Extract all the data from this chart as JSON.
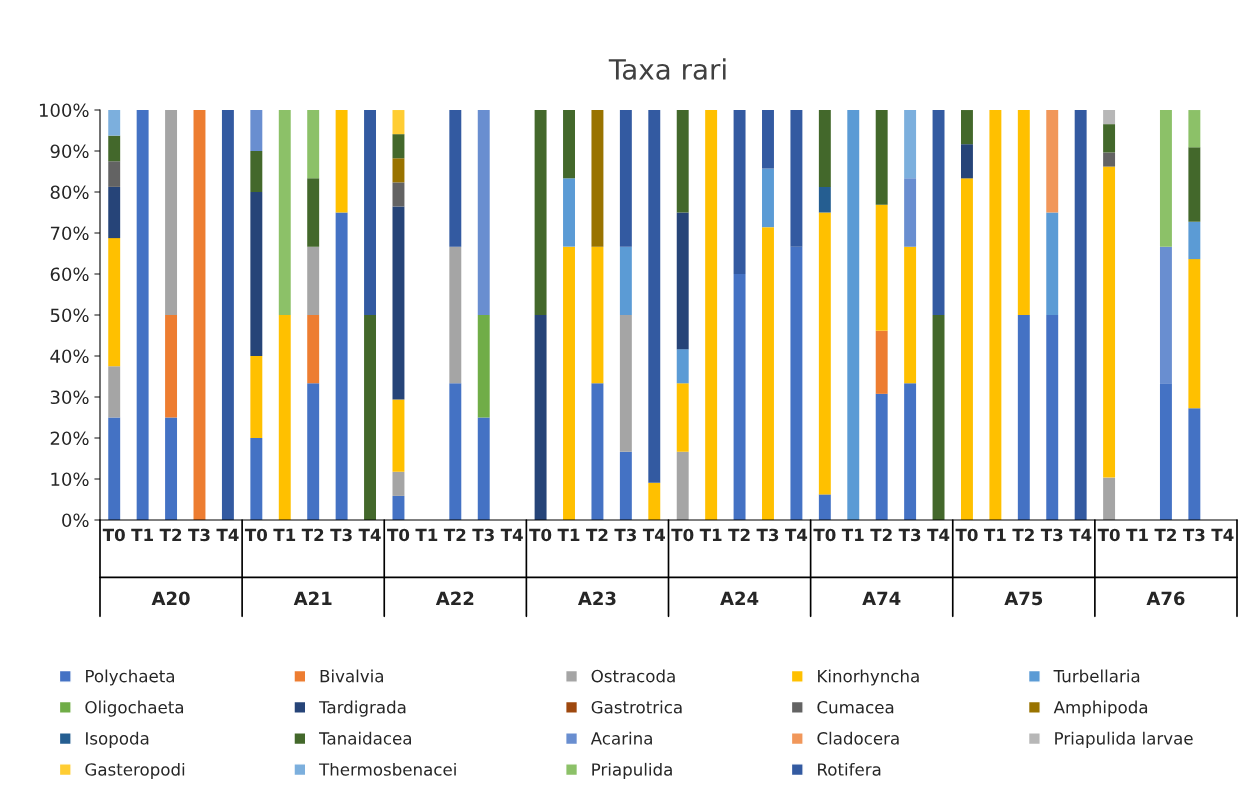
{
  "chart_data": {
    "type": "bar",
    "title": "Taxa rari",
    "stacked": true,
    "legend": "bottom",
    "grid": false,
    "categories": [
      "T0",
      "T1",
      "T2",
      "T3",
      "T4",
      "T0",
      "T1",
      "T2",
      "T3",
      "T4",
      "T0",
      "T1",
      "T2",
      "T3",
      "T4",
      "T0",
      "T1",
      "T2",
      "T3",
      "T4",
      "T0",
      "T1",
      "T2",
      "T3",
      "T4",
      "T0",
      "T1",
      "T2",
      "T3",
      "T4",
      "T0",
      "T1",
      "T2",
      "T3",
      "T4",
      "T0",
      "T1",
      "T2",
      "T3",
      "T4"
    ],
    "annotations": [
      "A20",
      "A21",
      "A22",
      "A23",
      "A24",
      "A74",
      "A75",
      "A76"
    ],
    "ylim": [
      0,
      100
    ],
    "yticks": [
      {
        "value": 0,
        "label": "0%"
      },
      {
        "value": 10,
        "label": "10%"
      },
      {
        "value": 20,
        "label": "20%"
      },
      {
        "value": 30,
        "label": "30%"
      },
      {
        "value": 40,
        "label": "40%"
      },
      {
        "value": 50,
        "label": "50%"
      },
      {
        "value": 60,
        "label": "60%"
      },
      {
        "value": 70,
        "label": "70%"
      },
      {
        "value": 80,
        "label": "80%"
      },
      {
        "value": 90,
        "label": "90%"
      },
      {
        "value": 100,
        "label": "100%"
      }
    ],
    "series": [
      {
        "name": "Polychaeta",
        "color": "#4472c4",
        "values": [
          25,
          100,
          25,
          null,
          null,
          20,
          null,
          33.33,
          75,
          null,
          5.88,
          null,
          33.33,
          25,
          null,
          null,
          null,
          33.33,
          16.67,
          null,
          null,
          null,
          60,
          null,
          66.67,
          6.25,
          null,
          30.77,
          33.33,
          null,
          null,
          null,
          50,
          50,
          null,
          null,
          null,
          33.33,
          27.27,
          null
        ]
      },
      {
        "name": "Bivalvia",
        "color": "#ed7d31",
        "values": [
          null,
          null,
          25,
          100,
          null,
          null,
          null,
          16.67,
          null,
          null,
          null,
          null,
          null,
          null,
          null,
          null,
          null,
          null,
          null,
          null,
          null,
          null,
          null,
          null,
          null,
          null,
          null,
          15.38,
          null,
          null,
          null,
          null,
          null,
          null,
          null,
          null,
          null,
          null,
          null,
          null
        ]
      },
      {
        "name": "Ostracoda",
        "color": "#a5a5a5",
        "values": [
          12.5,
          null,
          50,
          null,
          null,
          null,
          null,
          16.67,
          null,
          null,
          5.88,
          null,
          33.33,
          null,
          null,
          null,
          null,
          null,
          33.33,
          null,
          16.67,
          null,
          null,
          null,
          null,
          null,
          null,
          null,
          null,
          null,
          null,
          null,
          null,
          null,
          null,
          10.34,
          null,
          null,
          null,
          null
        ]
      },
      {
        "name": "Kinorhyncha",
        "color": "#ffc000",
        "values": [
          31.25,
          null,
          null,
          null,
          null,
          20,
          50,
          null,
          25,
          null,
          17.65,
          null,
          null,
          null,
          null,
          null,
          66.67,
          33.33,
          null,
          9.09,
          16.67,
          100,
          null,
          71.43,
          null,
          68.75,
          null,
          30.77,
          33.33,
          null,
          83.33,
          100,
          50,
          null,
          null,
          75.86,
          null,
          null,
          36.36,
          null
        ]
      },
      {
        "name": "Turbellaria",
        "color": "#5b9bd5",
        "values": [
          null,
          null,
          null,
          null,
          null,
          null,
          null,
          null,
          null,
          null,
          null,
          null,
          null,
          null,
          null,
          null,
          16.67,
          null,
          16.67,
          null,
          8.33,
          null,
          null,
          14.29,
          null,
          null,
          100,
          null,
          null,
          null,
          null,
          null,
          null,
          25,
          null,
          null,
          null,
          null,
          9.09,
          null
        ]
      },
      {
        "name": "Oligochaeta",
        "color": "#70ad47",
        "values": [
          null,
          null,
          null,
          null,
          null,
          null,
          null,
          null,
          null,
          null,
          null,
          null,
          null,
          25,
          null,
          null,
          null,
          null,
          null,
          null,
          null,
          null,
          null,
          null,
          null,
          null,
          null,
          null,
          null,
          null,
          null,
          null,
          null,
          null,
          null,
          null,
          null,
          null,
          null,
          null
        ]
      },
      {
        "name": "Tardigrada",
        "color": "#264478",
        "values": [
          12.5,
          null,
          null,
          null,
          null,
          40,
          null,
          null,
          null,
          null,
          47.06,
          null,
          null,
          null,
          null,
          50,
          null,
          null,
          null,
          null,
          33.33,
          null,
          null,
          null,
          null,
          null,
          null,
          null,
          null,
          null,
          8.33,
          null,
          null,
          null,
          null,
          null,
          null,
          null,
          null,
          null
        ]
      },
      {
        "name": "Gastrotrica",
        "color": "#9e480e",
        "values": [
          null,
          null,
          null,
          null,
          null,
          null,
          null,
          null,
          null,
          null,
          null,
          null,
          null,
          null,
          null,
          null,
          null,
          null,
          null,
          null,
          null,
          null,
          null,
          null,
          null,
          null,
          null,
          null,
          null,
          null,
          null,
          null,
          null,
          null,
          null,
          null,
          null,
          null,
          null,
          null
        ]
      },
      {
        "name": "Cumacea",
        "color": "#636363",
        "values": [
          6.25,
          null,
          null,
          null,
          null,
          null,
          null,
          null,
          null,
          null,
          5.88,
          null,
          null,
          null,
          null,
          null,
          null,
          null,
          null,
          null,
          null,
          null,
          null,
          null,
          null,
          null,
          null,
          null,
          null,
          null,
          null,
          null,
          null,
          null,
          null,
          3.45,
          null,
          null,
          null,
          null
        ]
      },
      {
        "name": "Amphipoda",
        "color": "#997300",
        "values": [
          null,
          null,
          null,
          null,
          null,
          null,
          null,
          null,
          null,
          null,
          5.88,
          null,
          null,
          null,
          null,
          null,
          null,
          33.33,
          null,
          null,
          null,
          null,
          null,
          null,
          null,
          null,
          null,
          null,
          null,
          null,
          null,
          null,
          null,
          null,
          null,
          null,
          null,
          null,
          null,
          null
        ]
      },
      {
        "name": "Isopoda",
        "color": "#255e91",
        "values": [
          null,
          null,
          null,
          null,
          null,
          null,
          null,
          null,
          null,
          null,
          null,
          null,
          null,
          null,
          null,
          null,
          null,
          null,
          null,
          null,
          null,
          null,
          null,
          null,
          null,
          6.25,
          null,
          null,
          null,
          null,
          null,
          null,
          null,
          null,
          null,
          null,
          null,
          null,
          null,
          null
        ]
      },
      {
        "name": "Tanaidacea",
        "color": "#43682b",
        "values": [
          6.25,
          null,
          null,
          null,
          null,
          10,
          null,
          16.67,
          null,
          50,
          5.88,
          null,
          null,
          null,
          null,
          50,
          16.66,
          null,
          null,
          null,
          25,
          null,
          null,
          null,
          null,
          18.75,
          null,
          23.08,
          null,
          50,
          8.33,
          null,
          null,
          null,
          null,
          6.9,
          null,
          null,
          18.18,
          null
        ]
      },
      {
        "name": "Acarina",
        "color": "#698ed0",
        "values": [
          null,
          null,
          null,
          null,
          null,
          10,
          null,
          null,
          null,
          null,
          null,
          null,
          null,
          50,
          null,
          null,
          null,
          null,
          null,
          null,
          null,
          null,
          null,
          null,
          null,
          null,
          null,
          null,
          16.67,
          null,
          null,
          null,
          null,
          null,
          null,
          null,
          null,
          33.33,
          null,
          null
        ]
      },
      {
        "name": "Cladocera",
        "color": "#f1975a",
        "values": [
          null,
          null,
          null,
          null,
          null,
          null,
          null,
          null,
          null,
          null,
          null,
          null,
          null,
          null,
          null,
          null,
          null,
          null,
          null,
          null,
          null,
          null,
          null,
          null,
          null,
          null,
          null,
          null,
          null,
          null,
          null,
          null,
          null,
          25,
          null,
          null,
          null,
          null,
          null,
          null
        ]
      },
      {
        "name": "Priapulida larvae",
        "color": "#b7b7b7",
        "values": [
          null,
          null,
          null,
          null,
          null,
          null,
          null,
          null,
          null,
          null,
          null,
          null,
          null,
          null,
          null,
          null,
          null,
          null,
          null,
          null,
          null,
          null,
          null,
          null,
          null,
          null,
          null,
          null,
          null,
          null,
          null,
          null,
          null,
          null,
          null,
          3.45,
          null,
          null,
          null,
          null
        ]
      },
      {
        "name": "Gasteropodi",
        "color": "#ffcd33",
        "values": [
          null,
          null,
          null,
          null,
          null,
          null,
          null,
          null,
          null,
          null,
          5.88,
          null,
          null,
          null,
          null,
          null,
          null,
          null,
          null,
          null,
          null,
          null,
          null,
          null,
          null,
          null,
          null,
          null,
          null,
          null,
          null,
          null,
          null,
          null,
          null,
          null,
          null,
          null,
          null,
          null
        ]
      },
      {
        "name": "Thermosbenacei",
        "color": "#7cafdd",
        "values": [
          6.25,
          null,
          null,
          null,
          null,
          null,
          null,
          null,
          null,
          null,
          null,
          null,
          null,
          null,
          null,
          null,
          null,
          null,
          null,
          null,
          null,
          null,
          null,
          null,
          null,
          null,
          null,
          null,
          16.67,
          null,
          null,
          null,
          null,
          null,
          null,
          null,
          null,
          null,
          null,
          null
        ]
      },
      {
        "name": "Priapulida",
        "color": "#8cc168",
        "values": [
          null,
          null,
          null,
          null,
          null,
          null,
          50,
          16.66,
          null,
          null,
          null,
          null,
          null,
          null,
          null,
          null,
          null,
          null,
          null,
          null,
          null,
          null,
          null,
          null,
          null,
          null,
          null,
          null,
          null,
          null,
          null,
          null,
          null,
          null,
          null,
          null,
          null,
          33.34,
          9.09,
          null
        ]
      },
      {
        "name": "Rotifera",
        "color": "#335aa1",
        "values": [
          null,
          null,
          null,
          null,
          100,
          null,
          null,
          null,
          null,
          50,
          null,
          null,
          33.34,
          null,
          null,
          null,
          null,
          null,
          33.33,
          90.91,
          null,
          null,
          40,
          14.28,
          33.33,
          null,
          null,
          null,
          null,
          50,
          null,
          null,
          null,
          null,
          100,
          null,
          null,
          null,
          null,
          null
        ]
      }
    ]
  }
}
